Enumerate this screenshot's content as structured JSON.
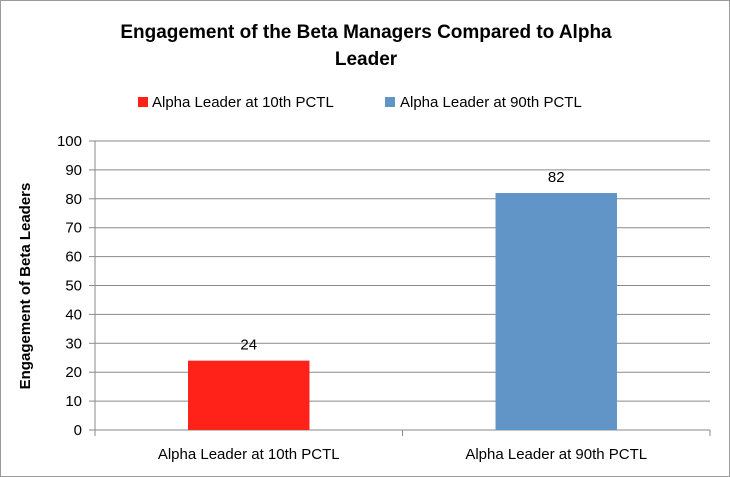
{
  "chart_data": {
    "type": "bar",
    "title_lines": [
      "Engagement of  the Beta Managers Compared to  Alpha",
      "Leader"
    ],
    "xlabel": "",
    "ylabel": "Engagement of  Beta Leaders",
    "categories": [
      "Alpha Leader at 10th PCTL",
      "Alpha Leader at 90th PCTL"
    ],
    "values": [
      24,
      82
    ],
    "data_labels": [
      "24",
      "82"
    ],
    "bar_colors": [
      "#ff2218",
      "#6195c8"
    ],
    "ylim": [
      0,
      100
    ],
    "yticks": [
      0,
      10,
      20,
      30,
      40,
      50,
      60,
      70,
      80,
      90,
      100
    ],
    "grid": true,
    "legend": {
      "position": "top",
      "entries": [
        {
          "label": "Alpha Leader at 10th PCTL",
          "color": "#ff2218"
        },
        {
          "label": "Alpha Leader at 90th PCTL",
          "color": "#6195c8"
        }
      ]
    }
  }
}
